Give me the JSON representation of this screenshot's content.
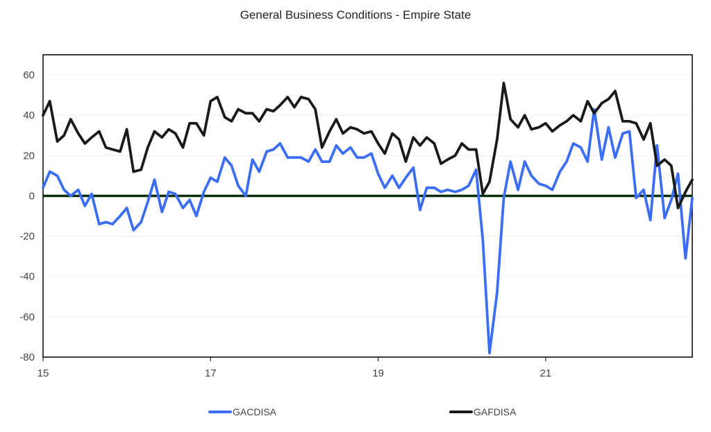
{
  "chart_data": {
    "type": "line",
    "title": "General Business Conditions - Empire State",
    "ylim": [
      -80,
      70
    ],
    "y_ticks": [
      -80,
      -60,
      -40,
      -20,
      0,
      20,
      40,
      60
    ],
    "y_tick_labels": [
      "-80",
      "-60",
      "-40",
      "-20",
      "0",
      "20",
      "40",
      "60"
    ],
    "xlim": [
      2015,
      2022.75
    ],
    "x_ticks": [
      2015,
      2017,
      2019,
      2021
    ],
    "x_tick_labels": [
      "15",
      "17",
      "19",
      "21"
    ],
    "grid": true,
    "zero_line": {
      "value": 0,
      "color": "#0b2e0b"
    },
    "legend_position": "bottom",
    "x": [
      2015,
      2015.08,
      2015.17,
      2015.25,
      2015.33,
      2015.42,
      2015.5,
      2015.58,
      2015.67,
      2015.75,
      2015.83,
      2015.92,
      2016,
      2016.08,
      2016.17,
      2016.25,
      2016.33,
      2016.42,
      2016.5,
      2016.58,
      2016.67,
      2016.75,
      2016.83,
      2016.92,
      2017,
      2017.08,
      2017.17,
      2017.25,
      2017.33,
      2017.42,
      2017.5,
      2017.58,
      2017.67,
      2017.75,
      2017.83,
      2017.92,
      2018,
      2018.08,
      2018.17,
      2018.25,
      2018.33,
      2018.42,
      2018.5,
      2018.58,
      2018.67,
      2018.75,
      2018.83,
      2018.92,
      2019,
      2019.08,
      2019.17,
      2019.25,
      2019.33,
      2019.42,
      2019.5,
      2019.58,
      2019.67,
      2019.75,
      2019.83,
      2019.92,
      2020,
      2020.08,
      2020.17,
      2020.25,
      2020.33,
      2020.42,
      2020.5,
      2020.58,
      2020.67,
      2020.75,
      2020.83,
      2020.92,
      2021,
      2021.08,
      2021.17,
      2021.25,
      2021.33,
      2021.42,
      2021.5,
      2021.58,
      2021.67,
      2021.75,
      2021.83,
      2021.92,
      2022,
      2022.08,
      2022.17,
      2022.25,
      2022.33,
      2022.42,
      2022.5,
      2022.58,
      2022.67,
      2022.75
    ],
    "series": [
      {
        "name": "GACDISA",
        "color": "#3c6ef5",
        "values": [
          4,
          12,
          10,
          3,
          0,
          3,
          -5,
          1,
          -14,
          -13,
          -14,
          -10,
          -6,
          -17,
          -13,
          -3,
          8,
          -8,
          2,
          1,
          -6,
          -2,
          -10,
          2,
          9,
          7,
          19,
          15,
          5,
          0,
          18,
          12,
          22,
          23,
          26,
          19,
          19,
          19,
          17,
          23,
          17,
          17,
          25,
          21,
          24,
          19,
          19,
          21,
          11,
          4,
          10,
          4,
          9,
          14,
          -7,
          4,
          4,
          2,
          3,
          2,
          3,
          5,
          13,
          -22,
          -78,
          -48,
          -1,
          17,
          3,
          17,
          10,
          6,
          5,
          3,
          12,
          17,
          26,
          24,
          17,
          43,
          18,
          34,
          19,
          31,
          32,
          -1,
          3,
          -12,
          25,
          -11,
          -2,
          11,
          -31,
          -1
        ]
      },
      {
        "name": "GAFDISA",
        "color": "#1a1a1a",
        "values": [
          40,
          47,
          27,
          30,
          38,
          31,
          26,
          29,
          32,
          24,
          23,
          22,
          33,
          12,
          13,
          24,
          32,
          29,
          33,
          31,
          24,
          36,
          36,
          30,
          47,
          49,
          39,
          37,
          43,
          41,
          41,
          37,
          43,
          42,
          45,
          49,
          44,
          49,
          48,
          43,
          24,
          32,
          38,
          31,
          34,
          33,
          31,
          32,
          26,
          21,
          31,
          28,
          17,
          29,
          25,
          29,
          26,
          16,
          18,
          20,
          26,
          23,
          23,
          1,
          7,
          28,
          56,
          38,
          34,
          40,
          33,
          34,
          36,
          32,
          35,
          37,
          40,
          37,
          47,
          41,
          46,
          48,
          52,
          37,
          37,
          36,
          28,
          36,
          15,
          18,
          15,
          -6,
          2,
          8
        ]
      }
    ]
  }
}
